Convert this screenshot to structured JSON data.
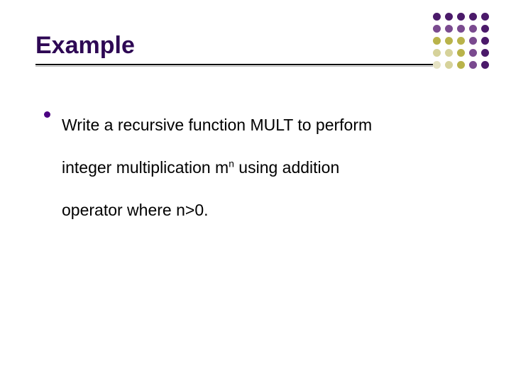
{
  "slide": {
    "title": "Example",
    "title_color": "#2e0854",
    "title_fontsize": 34,
    "body": {
      "line1": "Write a recursive function MULT to perform",
      "line2_pre": "integer multiplication m",
      "line2_sup": "n",
      "line2_post": " using addition",
      "line3": "operator where n>0.",
      "fontsize": 23,
      "text_color": "#000000",
      "bullet_color": "#4b0082"
    },
    "underline_dark": "#000000",
    "underline_light": "#b0b0b0",
    "background_color": "#ffffff"
  },
  "decoration": {
    "type": "dot-grid",
    "rows": 5,
    "cols": 5,
    "dot_colors": [
      [
        "#4b1a6a",
        "#4b1a6a",
        "#4b1a6a",
        "#4b1a6a",
        "#4b1a6a"
      ],
      [
        "#7a4a8f",
        "#7a4a8f",
        "#7a4a8f",
        "#7a4a8f",
        "#4b1a6a"
      ],
      [
        "#b9b34a",
        "#b9b34a",
        "#b9b34a",
        "#7a4a8f",
        "#4b1a6a"
      ],
      [
        "#d6d29a",
        "#d6d29a",
        "#b9b34a",
        "#7a4a8f",
        "#4b1a6a"
      ],
      [
        "#e6e3c4",
        "#d6d29a",
        "#b9b34a",
        "#7a4a8f",
        "#4b1a6a"
      ]
    ]
  }
}
